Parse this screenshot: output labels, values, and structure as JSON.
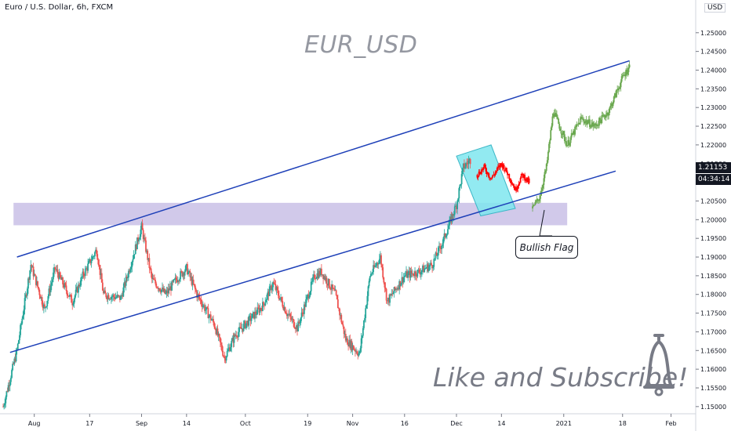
{
  "header": {
    "symbol": "Euro / U.S. Dollar, 6h, FXCM",
    "currency": "USD",
    "watermark": "EUR_USD"
  },
  "annotations": {
    "pattern_label": "Bullish Flag",
    "call_to_action": "Like and Subscribe!"
  },
  "price_tags": {
    "last_price": "1.21153",
    "countdown": "04:34:14"
  },
  "colors": {
    "up": "#26a69a",
    "down": "#ef5350",
    "channel": "#1e40b8",
    "zone": "#c9c0e6",
    "flag": "#7fe6ef",
    "projection": "#6aa84f",
    "flag_candles": "#ff0000"
  },
  "icons": [
    "bell-icon"
  ],
  "chart_data": {
    "type": "candlestick",
    "y_axis": {
      "range": [
        1.1485,
        1.2575
      ],
      "ticks": [
        "1.25000",
        "1.24500",
        "1.24000",
        "1.23500",
        "1.23000",
        "1.22500",
        "1.22000",
        "1.21500",
        "1.21000",
        "1.20500",
        "1.20000",
        "1.19500",
        "1.19000",
        "1.18500",
        "1.18000",
        "1.17500",
        "1.17000",
        "1.16500",
        "1.16000",
        "1.15500",
        "1.15000"
      ],
      "grid": false
    },
    "x_axis": {
      "range": [
        "2020-07-23",
        "2021-02-07"
      ],
      "ticks": [
        {
          "label": "Aug",
          "date": "2020-08-01"
        },
        {
          "label": "17",
          "date": "2020-08-17"
        },
        {
          "label": "Sep",
          "date": "2020-09-01"
        },
        {
          "label": "14",
          "date": "2020-09-14"
        },
        {
          "label": "Oct",
          "date": "2020-10-01"
        },
        {
          "label": "19",
          "date": "2020-10-19"
        },
        {
          "label": "Nov",
          "date": "2020-11-01"
        },
        {
          "label": "16",
          "date": "2020-11-16"
        },
        {
          "label": "Dec",
          "date": "2020-12-01"
        },
        {
          "label": "14",
          "date": "2020-12-14"
        },
        {
          "label": "2021",
          "date": "2021-01-01"
        },
        {
          "label": "18",
          "date": "2021-01-18"
        },
        {
          "label": "Feb",
          "date": "2021-02-01"
        }
      ]
    },
    "price_path": [
      [
        "2020-07-23",
        1.15
      ],
      [
        "2020-07-27",
        1.165
      ],
      [
        "2020-07-31",
        1.188
      ],
      [
        "2020-08-04",
        1.176
      ],
      [
        "2020-08-07",
        1.187
      ],
      [
        "2020-08-12",
        1.178
      ],
      [
        "2020-08-15",
        1.185
      ],
      [
        "2020-08-19",
        1.192
      ],
      [
        "2020-08-21",
        1.18
      ],
      [
        "2020-08-26",
        1.179
      ],
      [
        "2020-09-01",
        1.198
      ],
      [
        "2020-09-04",
        1.184
      ],
      [
        "2020-09-08",
        1.18
      ],
      [
        "2020-09-11",
        1.184
      ],
      [
        "2020-09-14",
        1.187
      ],
      [
        "2020-09-17",
        1.18
      ],
      [
        "2020-09-22",
        1.172
      ],
      [
        "2020-09-25",
        1.163
      ],
      [
        "2020-09-28",
        1.169
      ],
      [
        "2020-10-02",
        1.173
      ],
      [
        "2020-10-06",
        1.177
      ],
      [
        "2020-10-09",
        1.183
      ],
      [
        "2020-10-13",
        1.175
      ],
      [
        "2020-10-16",
        1.171
      ],
      [
        "2020-10-21",
        1.185
      ],
      [
        "2020-10-23",
        1.186
      ],
      [
        "2020-10-27",
        1.18
      ],
      [
        "2020-10-30",
        1.168
      ],
      [
        "2020-11-03",
        1.164
      ],
      [
        "2020-11-06",
        1.185
      ],
      [
        "2020-11-09",
        1.19
      ],
      [
        "2020-11-11",
        1.178
      ],
      [
        "2020-11-16",
        1.185
      ],
      [
        "2020-11-20",
        1.186
      ],
      [
        "2020-11-24",
        1.188
      ],
      [
        "2020-11-27",
        1.194
      ],
      [
        "2020-12-01",
        1.204
      ],
      [
        "2020-12-03",
        1.214
      ],
      [
        "2020-12-05",
        1.216
      ]
    ],
    "flag_path": [
      [
        "2020-12-07",
        1.212
      ],
      [
        "2020-12-09",
        1.214
      ],
      [
        "2020-12-11",
        1.211
      ],
      [
        "2020-12-14",
        1.215
      ],
      [
        "2020-12-16",
        1.212
      ],
      [
        "2020-12-18",
        1.208
      ],
      [
        "2020-12-20",
        1.212
      ],
      [
        "2020-12-22",
        1.21
      ]
    ],
    "projection_path": [
      [
        "2020-12-23",
        1.203
      ],
      [
        "2020-12-25",
        1.206
      ],
      [
        "2020-12-27",
        1.214
      ],
      [
        "2020-12-29",
        1.229
      ],
      [
        "2021-01-02",
        1.22
      ],
      [
        "2021-01-06",
        1.227
      ],
      [
        "2021-01-10",
        1.225
      ],
      [
        "2021-01-14",
        1.229
      ],
      [
        "2021-01-18",
        1.238
      ],
      [
        "2021-01-20",
        1.241
      ]
    ],
    "channel_upper": [
      [
        "2020-07-27",
        1.19
      ],
      [
        "2021-01-20",
        1.2425
      ]
    ],
    "channel_lower": [
      [
        "2020-07-25",
        1.1645
      ],
      [
        "2021-01-16",
        1.213
      ]
    ],
    "support_zone": {
      "x": [
        "2020-07-26",
        "2021-01-02"
      ],
      "y": [
        1.1985,
        1.2045
      ]
    },
    "flag_box": [
      [
        "2020-12-01",
        1.217
      ],
      [
        "2020-12-11",
        1.22
      ],
      [
        "2020-12-18",
        1.203
      ],
      [
        "2020-12-08",
        1.201
      ]
    ]
  }
}
